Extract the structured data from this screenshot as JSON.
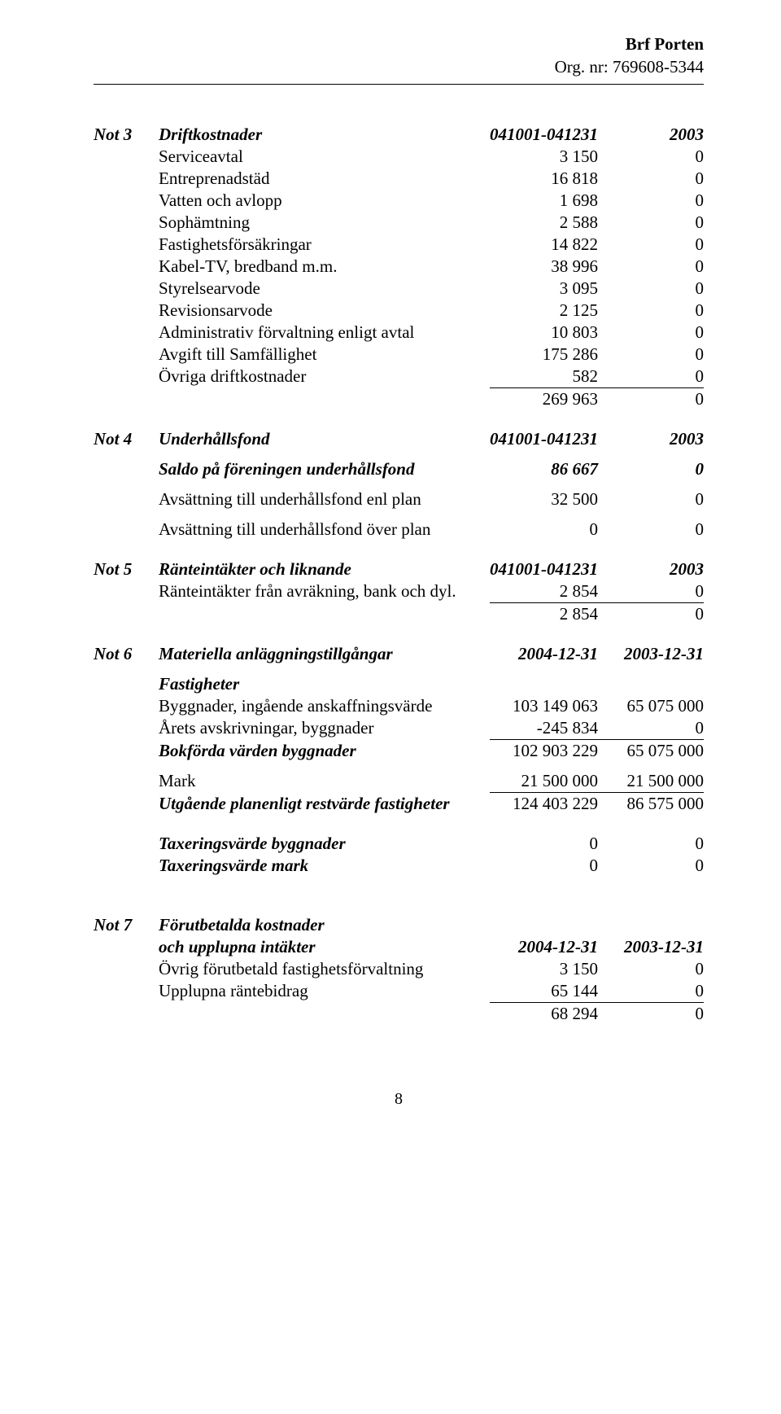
{
  "header": {
    "title": "Brf Porten",
    "org_nr": "Org. nr: 769608-5344"
  },
  "period_current": "041001-041231",
  "period_prior": "2003",
  "date_current": "2004-12-31",
  "date_prior": "2003-12-31",
  "not3": {
    "label": "Not 3",
    "title": "Driftkostnader",
    "rows": [
      {
        "label": "Serviceavtal",
        "v1": "3 150",
        "v2": "0"
      },
      {
        "label": "Entreprenadstäd",
        "v1": "16 818",
        "v2": "0"
      },
      {
        "label": "Vatten och avlopp",
        "v1": "1 698",
        "v2": "0"
      },
      {
        "label": "Sophämtning",
        "v1": "2 588",
        "v2": "0"
      },
      {
        "label": "Fastighetsförsäkringar",
        "v1": "14 822",
        "v2": "0"
      },
      {
        "label": "Kabel-TV, bredband m.m.",
        "v1": "38 996",
        "v2": "0"
      },
      {
        "label": "Styrelsearvode",
        "v1": "3 095",
        "v2": "0"
      },
      {
        "label": "Revisionsarvode",
        "v1": "2 125",
        "v2": "0"
      },
      {
        "label": "Administrativ förvaltning enligt avtal",
        "v1": "10 803",
        "v2": "0"
      },
      {
        "label": "Avgift till Samfällighet",
        "v1": "175 286",
        "v2": "0"
      },
      {
        "label": "Övriga driftkostnader",
        "v1": "582",
        "v2": "0"
      }
    ],
    "total": {
      "v1": "269 963",
      "v2": "0"
    }
  },
  "not4": {
    "label": "Not 4",
    "title": "Underhållsfond",
    "saldo": {
      "label": "Saldo på föreningen underhållsfond",
      "v1": "86 667",
      "v2": "0"
    },
    "rows": [
      {
        "label": "Avsättning till underhållsfond enl plan",
        "v1": "32 500",
        "v2": "0"
      },
      {
        "label": "Avsättning till underhållsfond över plan",
        "v1": "0",
        "v2": "0"
      }
    ]
  },
  "not5": {
    "label": "Not 5",
    "title": "Ränteintäkter och liknande",
    "rows": [
      {
        "label": "Ränteintäkter från avräkning, bank och dyl.",
        "v1": "2 854",
        "v2": "0"
      }
    ],
    "total": {
      "v1": "2 854",
      "v2": "0"
    }
  },
  "not6": {
    "label": "Not 6",
    "title": "Materiella anläggningstillgångar",
    "fastigheter_label": "Fastigheter",
    "rows1": [
      {
        "label": "Byggnader, ingående anskaffningsvärde",
        "v1": "103 149 063",
        "v2": "65 075 000"
      },
      {
        "label": "Årets avskrivningar, byggnader",
        "v1": "-245 834",
        "v2": "0"
      }
    ],
    "bokforda": {
      "label": "Bokförda värden byggnader",
      "v1": "102 903 229",
      "v2": "65 075 000"
    },
    "mark": {
      "label": "Mark",
      "v1": "21 500 000",
      "v2": "21 500 000"
    },
    "utgaende": {
      "label": "Utgående planenligt restvärde fastigheter",
      "v1": "124 403 229",
      "v2": "86 575 000"
    },
    "tax_bygg": {
      "label": "Taxeringsvärde byggnader",
      "v1": "0",
      "v2": "0"
    },
    "tax_mark": {
      "label": "Taxeringsvärde mark",
      "v1": "0",
      "v2": "0"
    }
  },
  "not7": {
    "label": "Not 7",
    "title_l1": "Förutbetalda kostnader",
    "title_l2": "och upplupna intäkter",
    "rows": [
      {
        "label": "Övrig förutbetald fastighetsförvaltning",
        "v1": "3 150",
        "v2": "0"
      },
      {
        "label": "Upplupna räntebidrag",
        "v1": "65 144",
        "v2": "0"
      }
    ],
    "total": {
      "v1": "68 294",
      "v2": "0"
    }
  },
  "page_number": "8"
}
